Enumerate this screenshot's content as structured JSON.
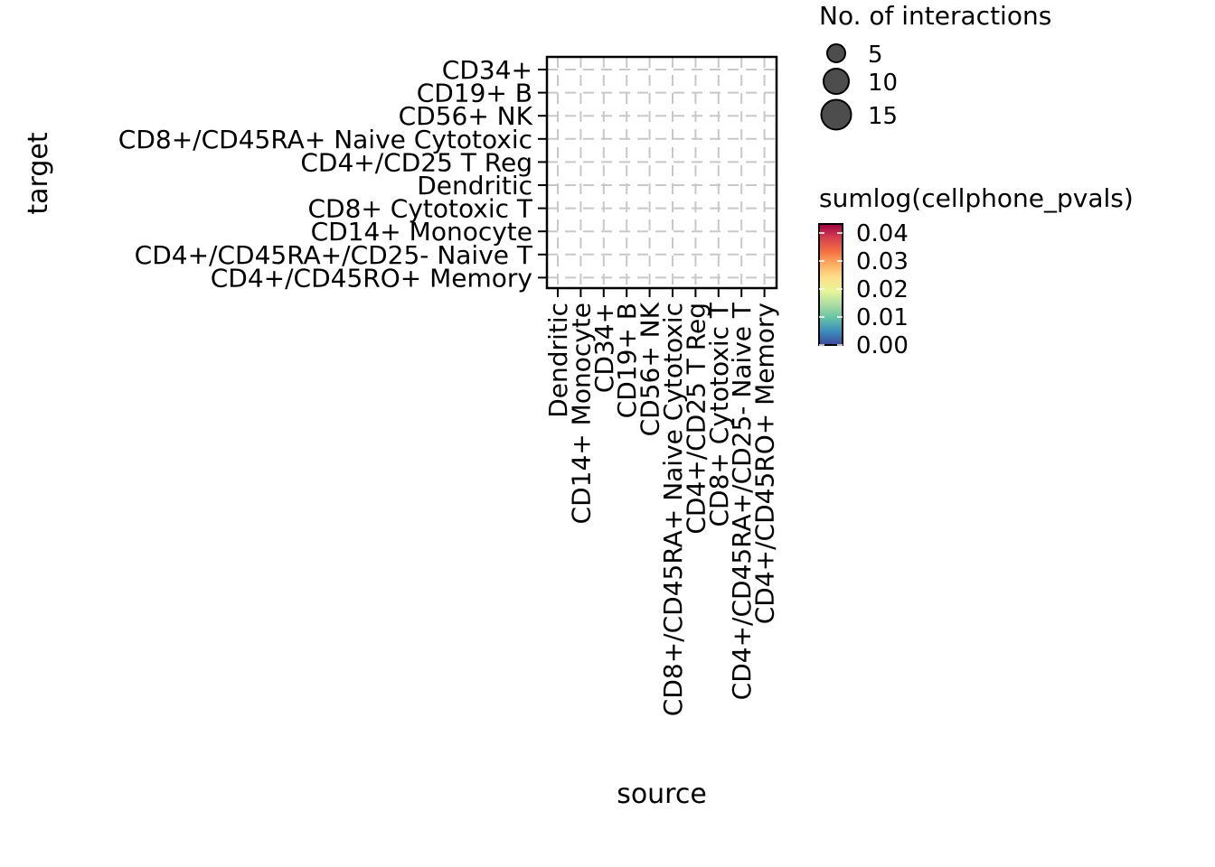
{
  "chart_data": {
    "type": "scatter",
    "xlabel": "source",
    "ylabel": "target",
    "x_categories": [
      "Dendritic",
      "CD14+ Monocyte",
      "CD34+",
      "CD19+ B",
      "CD56+ NK",
      "CD8+/CD45RA+ Naive Cytotoxic",
      "CD4+/CD25 T Reg",
      "CD8+ Cytotoxic T",
      "CD4+/CD45RA+/CD25- Naive T",
      "CD4+/CD45RO+ Memory"
    ],
    "y_categories": [
      "CD34+",
      "CD19+ B",
      "CD56+ NK",
      "CD8+/CD45RA+ Naive Cytotoxic",
      "CD4+/CD25 T Reg",
      "Dendritic",
      "CD8+ Cytotoxic T",
      "CD14+ Monocyte",
      "CD4+/CD45RA+/CD25- Naive T",
      "CD4+/CD45RO+ Memory"
    ],
    "points": [],
    "grid": true,
    "size_legend": {
      "title": "No. of interactions",
      "values": [
        5,
        10,
        15
      ],
      "labels": [
        "5",
        "10",
        "15"
      ]
    },
    "color_legend": {
      "title": "sumlog(cellphone_pvals)",
      "range": [
        0,
        0.04
      ],
      "ticks": [
        0.0,
        0.01,
        0.02,
        0.03,
        0.04
      ],
      "tick_labels": [
        "0.00",
        "0.01",
        "0.02",
        "0.03",
        "0.04"
      ],
      "colormap": "Spectral_r",
      "stops": [
        "#3e4a9c",
        "#3b8cbb",
        "#66c2a5",
        "#abdda4",
        "#e6f598",
        "#fee08b",
        "#fdae61",
        "#f46d43",
        "#d53e4f",
        "#9e0142"
      ]
    },
    "legend_placement": "right"
  }
}
